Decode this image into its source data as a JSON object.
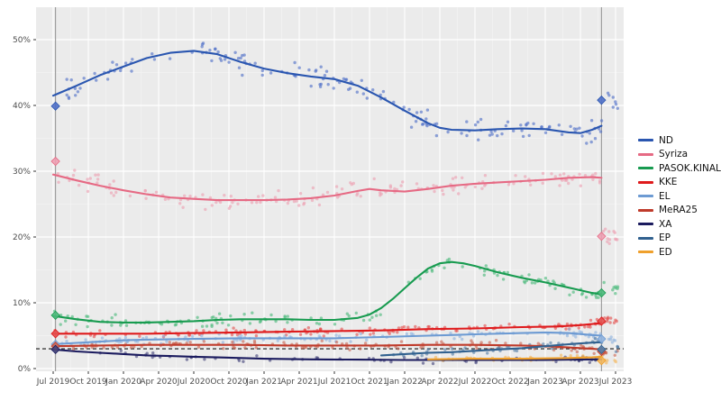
{
  "chart_data": {
    "type": "scatter",
    "title": "",
    "xlabel": "",
    "ylabel": "",
    "x_axis": {
      "unit": "months_since_jul_2019",
      "range": [
        0,
        48.6
      ],
      "tick_step_months": 3,
      "tick_labels": [
        "Jul 2019",
        "Oct 2019",
        "Jan 2020",
        "Apr 2020",
        "Jul 2020",
        "Oct 2020",
        "Jan 2021",
        "Apr 2021",
        "Jul 2021",
        "Oct 2021",
        "Jan 2022",
        "Apr 2022",
        "Jul 2022",
        "Oct 2022",
        "Jan 2023",
        "Apr 2023",
        "Jul 2023"
      ]
    },
    "y_axis": {
      "range": [
        0,
        55
      ],
      "major_ticks": [
        0,
        10,
        20,
        30,
        40,
        50
      ],
      "minor_ticks": [
        5,
        15,
        25,
        35,
        45
      ],
      "tick_labels": [
        "0%",
        "10%",
        "20%",
        "30%",
        "40%",
        "50%"
      ]
    },
    "grid": {
      "panel_bg": "#ebebeb",
      "major": "#ffffff",
      "minor": "#f3f3f3"
    },
    "threshold_line": {
      "value": 3,
      "color": "#3d3d3d",
      "dash": "4,3"
    },
    "election_lines": [
      {
        "m": 0.2
      },
      {
        "m": 46.8
      }
    ],
    "election_line_color": "#9a9a9a",
    "series": [
      {
        "name": "ND",
        "color": "#2a56b0",
        "scatter_color": "#4f6fc8",
        "jitter": 1.6,
        "density": 3.5,
        "trend": [
          [
            0,
            41.5
          ],
          [
            2,
            43.0
          ],
          [
            4,
            44.6
          ],
          [
            6,
            45.9
          ],
          [
            8,
            47.2
          ],
          [
            10,
            48.0
          ],
          [
            12,
            48.3
          ],
          [
            14,
            47.8
          ],
          [
            16,
            46.6
          ],
          [
            18,
            45.6
          ],
          [
            20,
            44.9
          ],
          [
            22,
            44.4
          ],
          [
            24,
            44.0
          ],
          [
            26,
            43.0
          ],
          [
            28,
            41.2
          ],
          [
            30,
            39.2
          ],
          [
            32,
            37.3
          ],
          [
            33,
            36.6
          ],
          [
            34,
            36.3
          ],
          [
            36,
            36.2
          ],
          [
            38,
            36.4
          ],
          [
            40,
            36.5
          ],
          [
            42,
            36.4
          ],
          [
            44,
            35.9
          ],
          [
            45,
            35.8
          ],
          [
            46,
            36.3
          ],
          [
            46.8,
            36.9
          ]
        ],
        "post": [
          [
            47.0,
            41.0
          ],
          [
            48.2,
            41.0
          ]
        ],
        "elections": [
          [
            0.2,
            39.9
          ],
          [
            46.8,
            40.8
          ]
        ]
      },
      {
        "name": "Syriza",
        "color": "#e66a84",
        "scatter_color": "#ee9fb2",
        "jitter": 1.3,
        "density": 3.5,
        "trend": [
          [
            0,
            29.5
          ],
          [
            2,
            28.6
          ],
          [
            4,
            27.8
          ],
          [
            6,
            27.1
          ],
          [
            8,
            26.5
          ],
          [
            10,
            26.0
          ],
          [
            12,
            25.8
          ],
          [
            14,
            25.6
          ],
          [
            16,
            25.6
          ],
          [
            18,
            25.6
          ],
          [
            20,
            25.7
          ],
          [
            22,
            25.9
          ],
          [
            24,
            26.3
          ],
          [
            26,
            27.0
          ],
          [
            27,
            27.3
          ],
          [
            28,
            27.1
          ],
          [
            30,
            26.9
          ],
          [
            32,
            27.3
          ],
          [
            34,
            27.8
          ],
          [
            36,
            28.1
          ],
          [
            38,
            28.3
          ],
          [
            40,
            28.5
          ],
          [
            42,
            28.7
          ],
          [
            44,
            29.0
          ],
          [
            46,
            29.1
          ],
          [
            46.8,
            29.0
          ]
        ],
        "post": [
          [
            47.0,
            19.8
          ],
          [
            48.2,
            19.5
          ]
        ],
        "elections": [
          [
            0.2,
            31.5
          ],
          [
            46.8,
            20.1
          ]
        ]
      },
      {
        "name": "PASOK.KINAL",
        "color": "#189b50",
        "scatter_color": "#4ab97a",
        "jitter": 0.9,
        "density": 3.0,
        "trend": [
          [
            0,
            8.0
          ],
          [
            2,
            7.5
          ],
          [
            4,
            7.1
          ],
          [
            6,
            7.0
          ],
          [
            8,
            7.0
          ],
          [
            10,
            7.1
          ],
          [
            12,
            7.2
          ],
          [
            14,
            7.4
          ],
          [
            16,
            7.5
          ],
          [
            18,
            7.5
          ],
          [
            20,
            7.5
          ],
          [
            22,
            7.4
          ],
          [
            24,
            7.4
          ],
          [
            26,
            7.7
          ],
          [
            27,
            8.2
          ],
          [
            28,
            9.2
          ],
          [
            29,
            10.6
          ],
          [
            30,
            12.2
          ],
          [
            31,
            13.8
          ],
          [
            32,
            15.2
          ],
          [
            33,
            16.0
          ],
          [
            34,
            16.2
          ],
          [
            35,
            16.0
          ],
          [
            36,
            15.6
          ],
          [
            38,
            14.6
          ],
          [
            40,
            13.8
          ],
          [
            42,
            13.1
          ],
          [
            44,
            12.3
          ],
          [
            46,
            11.5
          ],
          [
            46.8,
            11.3
          ]
        ],
        "post": [
          [
            47.0,
            12.2
          ],
          [
            48.2,
            12.3
          ]
        ],
        "elections": [
          [
            0.2,
            8.1
          ],
          [
            46.8,
            11.5
          ]
        ]
      },
      {
        "name": "KKE",
        "color": "#df1a1c",
        "scatter_color": "#e4504f",
        "jitter": 0.55,
        "density": 3.0,
        "trend": [
          [
            0,
            5.3
          ],
          [
            4,
            5.3
          ],
          [
            8,
            5.3
          ],
          [
            12,
            5.4
          ],
          [
            16,
            5.5
          ],
          [
            20,
            5.6
          ],
          [
            24,
            5.7
          ],
          [
            28,
            5.8
          ],
          [
            32,
            6.0
          ],
          [
            36,
            6.1
          ],
          [
            40,
            6.3
          ],
          [
            43,
            6.4
          ],
          [
            45,
            6.6
          ],
          [
            46.8,
            6.9
          ]
        ],
        "post": [
          [
            47.0,
            7.4
          ],
          [
            48.2,
            7.5
          ]
        ],
        "elections": [
          [
            0.2,
            5.3
          ],
          [
            46.8,
            7.2
          ]
        ]
      },
      {
        "name": "EL",
        "color": "#6d9bd3",
        "scatter_color": "#8fb3de",
        "jitter": 0.6,
        "density": 2.5,
        "trend": [
          [
            0,
            3.7
          ],
          [
            2,
            3.9
          ],
          [
            4,
            4.1
          ],
          [
            6,
            4.3
          ],
          [
            8,
            4.4
          ],
          [
            12,
            4.5
          ],
          [
            16,
            4.6
          ],
          [
            20,
            4.6
          ],
          [
            24,
            4.6
          ],
          [
            28,
            4.8
          ],
          [
            32,
            5.0
          ],
          [
            36,
            5.2
          ],
          [
            40,
            5.4
          ],
          [
            42,
            5.5
          ],
          [
            44,
            5.4
          ],
          [
            46,
            5.1
          ],
          [
            46.8,
            5.0
          ]
        ],
        "post": [
          [
            47.0,
            4.4
          ],
          [
            48.2,
            4.4
          ]
        ],
        "elections": [
          [
            0.2,
            3.7
          ],
          [
            46.8,
            4.5
          ]
        ]
      },
      {
        "name": "MeRA25",
        "color": "#bf3b2b",
        "scatter_color": "#cc6652",
        "jitter": 0.6,
        "density": 2.5,
        "trend": [
          [
            0,
            3.4
          ],
          [
            4,
            3.5
          ],
          [
            8,
            3.6
          ],
          [
            12,
            3.6
          ],
          [
            16,
            3.6
          ],
          [
            20,
            3.5
          ],
          [
            24,
            3.5
          ],
          [
            28,
            3.5
          ],
          [
            32,
            3.6
          ],
          [
            36,
            3.6
          ],
          [
            40,
            3.5
          ],
          [
            42,
            3.4
          ],
          [
            44,
            3.2
          ],
          [
            46,
            3.0
          ],
          [
            46.8,
            2.9
          ]
        ],
        "post": [
          [
            47.0,
            2.5
          ],
          [
            48.2,
            2.5
          ]
        ],
        "elections": [
          [
            0.2,
            3.4
          ],
          [
            46.8,
            2.6
          ]
        ]
      },
      {
        "name": "XA",
        "color": "#1b1b5e",
        "scatter_color": "#44447a",
        "jitter": 0.5,
        "density": 1.2,
        "trend": [
          [
            0,
            2.9
          ],
          [
            2,
            2.6
          ],
          [
            4,
            2.4
          ],
          [
            6,
            2.2
          ],
          [
            8,
            2.0
          ],
          [
            10,
            1.9
          ],
          [
            12,
            1.8
          ],
          [
            14,
            1.7
          ],
          [
            16,
            1.6
          ],
          [
            18,
            1.5
          ],
          [
            22,
            1.4
          ],
          [
            26,
            1.35
          ],
          [
            30,
            1.3
          ],
          [
            34,
            1.3
          ],
          [
            38,
            1.3
          ],
          [
            42,
            1.3
          ],
          [
            44,
            1.35
          ],
          [
            46.8,
            1.4
          ]
        ],
        "post": [],
        "elections": [
          [
            0.2,
            2.9
          ]
        ]
      },
      {
        "name": "EP",
        "color": "#31618f",
        "scatter_color": "#5580a8",
        "jitter": 0.5,
        "density": 2.0,
        "trend": [
          [
            28,
            2.0
          ],
          [
            30,
            2.2
          ],
          [
            32,
            2.4
          ],
          [
            34,
            2.5
          ],
          [
            36,
            2.7
          ],
          [
            38,
            2.9
          ],
          [
            40,
            3.1
          ],
          [
            42,
            3.4
          ],
          [
            44,
            3.7
          ],
          [
            46,
            3.95
          ],
          [
            46.8,
            4.0
          ]
        ],
        "post": [
          [
            47.0,
            3.0
          ],
          [
            48.2,
            3.0
          ]
        ],
        "elections": [
          [
            46.8,
            2.9
          ]
        ]
      },
      {
        "name": "ED",
        "color": "#efa02c",
        "scatter_color": "#f3b75c",
        "jitter": 0.35,
        "density": 2.0,
        "trend": [
          [
            32,
            1.4
          ],
          [
            34,
            1.45
          ],
          [
            36,
            1.5
          ],
          [
            38,
            1.5
          ],
          [
            40,
            1.5
          ],
          [
            42,
            1.55
          ],
          [
            44,
            1.6
          ],
          [
            46,
            1.7
          ],
          [
            46.8,
            1.8
          ]
        ],
        "post": [
          [
            47.0,
            1.2
          ],
          [
            48.2,
            1.2
          ]
        ],
        "elections": [
          [
            46.8,
            1.2
          ]
        ]
      }
    ],
    "legend": {
      "position": "right",
      "entries": [
        "ND",
        "Syriza",
        "PASOK.KINAL",
        "KKE",
        "EL",
        "MeRA25",
        "XA",
        "EP",
        "ED"
      ]
    }
  }
}
